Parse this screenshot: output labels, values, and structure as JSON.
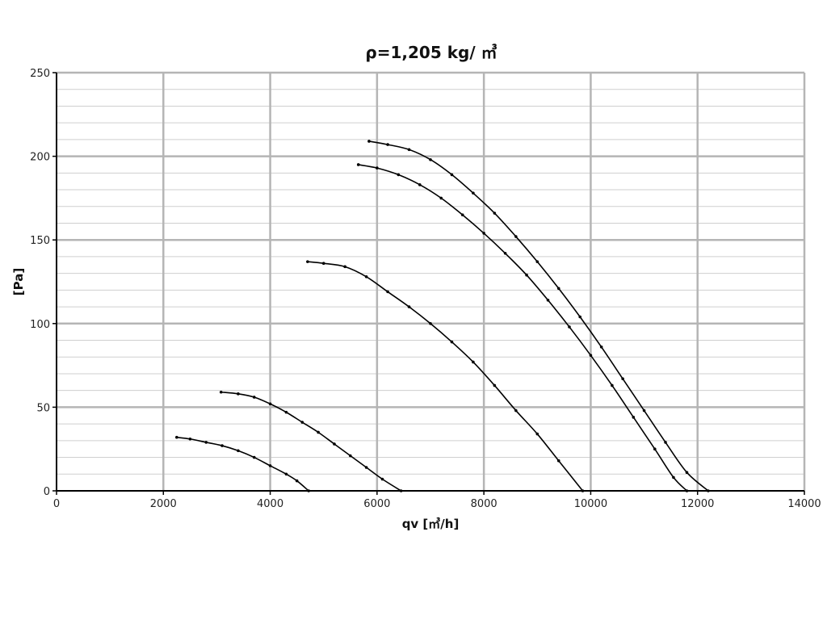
{
  "chart_data": {
    "type": "line",
    "title": "ρ=1,205 kg/ ㎥",
    "xlabel": "qv [㎥/h]",
    "ylabel": "[Pa]",
    "xlim": [
      0,
      14000
    ],
    "ylim": [
      0,
      250
    ],
    "x_ticks": [
      0,
      2000,
      4000,
      6000,
      8000,
      10000,
      12000,
      14000
    ],
    "y_ticks": [
      0,
      50,
      100,
      150,
      200,
      250
    ],
    "y_minor_step": 10,
    "grid": true,
    "legend": "none",
    "series": [
      {
        "points": [
          [
            2250,
            32
          ],
          [
            2500,
            31
          ],
          [
            2800,
            29
          ],
          [
            3100,
            27
          ],
          [
            3400,
            24
          ],
          [
            3700,
            20
          ],
          [
            4000,
            15
          ],
          [
            4300,
            10
          ],
          [
            4500,
            6
          ],
          [
            4720,
            0
          ]
        ]
      },
      {
        "points": [
          [
            3080,
            59
          ],
          [
            3400,
            58
          ],
          [
            3700,
            56
          ],
          [
            4000,
            52
          ],
          [
            4300,
            47
          ],
          [
            4600,
            41
          ],
          [
            4900,
            35
          ],
          [
            5200,
            28
          ],
          [
            5500,
            21
          ],
          [
            5800,
            14
          ],
          [
            6100,
            7
          ],
          [
            6450,
            0
          ]
        ]
      },
      {
        "points": [
          [
            4700,
            137
          ],
          [
            5000,
            136
          ],
          [
            5400,
            134
          ],
          [
            5800,
            128
          ],
          [
            6200,
            119
          ],
          [
            6600,
            110
          ],
          [
            7000,
            100
          ],
          [
            7400,
            89
          ],
          [
            7800,
            77
          ],
          [
            8200,
            63
          ],
          [
            8600,
            48
          ],
          [
            9000,
            34
          ],
          [
            9400,
            18
          ],
          [
            9850,
            0
          ]
        ]
      },
      {
        "points": [
          [
            5650,
            195
          ],
          [
            6000,
            193
          ],
          [
            6400,
            189
          ],
          [
            6800,
            183
          ],
          [
            7200,
            175
          ],
          [
            7600,
            165
          ],
          [
            8000,
            154
          ],
          [
            8400,
            142
          ],
          [
            8800,
            129
          ],
          [
            9200,
            114
          ],
          [
            9600,
            98
          ],
          [
            10000,
            81
          ],
          [
            10400,
            63
          ],
          [
            10800,
            44
          ],
          [
            11200,
            25
          ],
          [
            11550,
            8
          ],
          [
            11800,
            0
          ]
        ]
      },
      {
        "points": [
          [
            5850,
            209
          ],
          [
            6200,
            207
          ],
          [
            6600,
            204
          ],
          [
            7000,
            198
          ],
          [
            7400,
            189
          ],
          [
            7800,
            178
          ],
          [
            8200,
            166
          ],
          [
            8600,
            152
          ],
          [
            9000,
            137
          ],
          [
            9400,
            121
          ],
          [
            9800,
            104
          ],
          [
            10200,
            86
          ],
          [
            10600,
            67
          ],
          [
            11000,
            48
          ],
          [
            11400,
            29
          ],
          [
            11800,
            11
          ],
          [
            12200,
            0
          ]
        ]
      }
    ]
  }
}
